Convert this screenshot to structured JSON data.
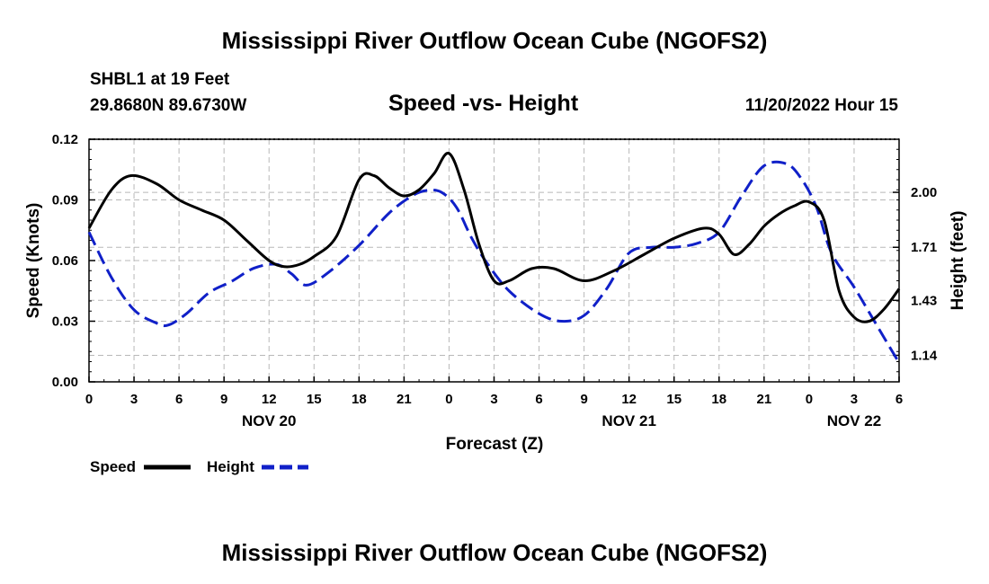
{
  "page": {
    "main_title": "Mississippi River Outflow Ocean Cube (NGOFS2)",
    "station": "SHBL1 at 19 Feet",
    "coords": "29.8680N  89.6730W",
    "subtitle": "Speed -vs- Height",
    "datetime": "11/20/2022 Hour 15",
    "bottom_title": "Mississippi River Outflow Ocean Cube (NGOFS2)"
  },
  "legend": {
    "speed_label": "Speed",
    "height_label": "Height",
    "speed_color": "#000000",
    "height_color": "#1020c8"
  },
  "chart_data": {
    "type": "line",
    "title": "Speed -vs- Height",
    "xlabel": "Forecast (Z)",
    "ylabel": "Speed (Knots)",
    "y2label": "Height (feet)",
    "x_unit": "hours from NOV 20 00Z",
    "xlim": [
      0,
      54
    ],
    "ylim": [
      0,
      0.12
    ],
    "y2lim": [
      1.0,
      2.28
    ],
    "x_ticks": [
      0,
      3,
      6,
      9,
      12,
      15,
      18,
      21,
      24,
      27,
      30,
      33,
      36,
      39,
      42,
      45,
      48,
      51,
      54
    ],
    "x_tick_labels": [
      "0",
      "3",
      "6",
      "9",
      "12",
      "15",
      "18",
      "21",
      "0",
      "3",
      "6",
      "9",
      "12",
      "15",
      "18",
      "21",
      "0",
      "3",
      "6"
    ],
    "y_ticks": [
      0,
      0.03,
      0.06,
      0.09,
      0.12
    ],
    "y_tick_labels": [
      "0.00",
      "0.03",
      "0.06",
      "0.09",
      "0.12"
    ],
    "y2_ticks": [
      1.14,
      1.43,
      1.71,
      2.0
    ],
    "y2_tick_labels": [
      "1.14",
      "1.43",
      "1.71",
      "2.00"
    ],
    "day_labels": [
      {
        "x": 12,
        "label": "NOV 20"
      },
      {
        "x": 36,
        "label": "NOV 21"
      },
      {
        "x": 51,
        "label": "NOV 22"
      }
    ],
    "series": [
      {
        "name": "Speed",
        "axis": "left",
        "style": "solid",
        "color": "#000000",
        "x": [
          0,
          1.5,
          2.8,
          4.5,
          6,
          7.5,
          9,
          10.5,
          12,
          13,
          14,
          15,
          16.5,
          18,
          19,
          20,
          21,
          22,
          23,
          24,
          25,
          26,
          27,
          28,
          29.5,
          31,
          33,
          35,
          37,
          39,
          41,
          42,
          43,
          44,
          45,
          46,
          47,
          48,
          49,
          50,
          51,
          52,
          53,
          54
        ],
        "values": [
          0.076,
          0.095,
          0.102,
          0.098,
          0.09,
          0.085,
          0.08,
          0.07,
          0.06,
          0.057,
          0.058,
          0.062,
          0.072,
          0.1,
          0.102,
          0.096,
          0.092,
          0.095,
          0.103,
          0.113,
          0.095,
          0.068,
          0.05,
          0.05,
          0.056,
          0.056,
          0.05,
          0.055,
          0.063,
          0.071,
          0.076,
          0.073,
          0.063,
          0.068,
          0.077,
          0.083,
          0.087,
          0.089,
          0.08,
          0.045,
          0.032,
          0.03,
          0.036,
          0.046
        ]
      },
      {
        "name": "Height",
        "axis": "right",
        "style": "dashed",
        "color": "#1020c8",
        "x": [
          0,
          1.5,
          3,
          4.5,
          5.3,
          6.5,
          8,
          9.5,
          11,
          12.5,
          13.5,
          14.5,
          16,
          18,
          20,
          21.5,
          22.5,
          23.5,
          24.5,
          25.5,
          26.5,
          28,
          30,
          31.5,
          33,
          34.5,
          36,
          37.5,
          39,
          40.5,
          42,
          43.5,
          45,
          46.5,
          47.5,
          48.5,
          49.5,
          51,
          52.5,
          54
        ],
        "values": [
          1.79,
          1.55,
          1.38,
          1.31,
          1.3,
          1.36,
          1.47,
          1.53,
          1.6,
          1.62,
          1.57,
          1.51,
          1.58,
          1.72,
          1.89,
          1.98,
          2.01,
          2.0,
          1.92,
          1.76,
          1.63,
          1.48,
          1.36,
          1.32,
          1.35,
          1.49,
          1.68,
          1.71,
          1.71,
          1.73,
          1.79,
          1.98,
          2.14,
          2.15,
          2.07,
          1.92,
          1.68,
          1.5,
          1.3,
          1.1
        ]
      }
    ]
  }
}
